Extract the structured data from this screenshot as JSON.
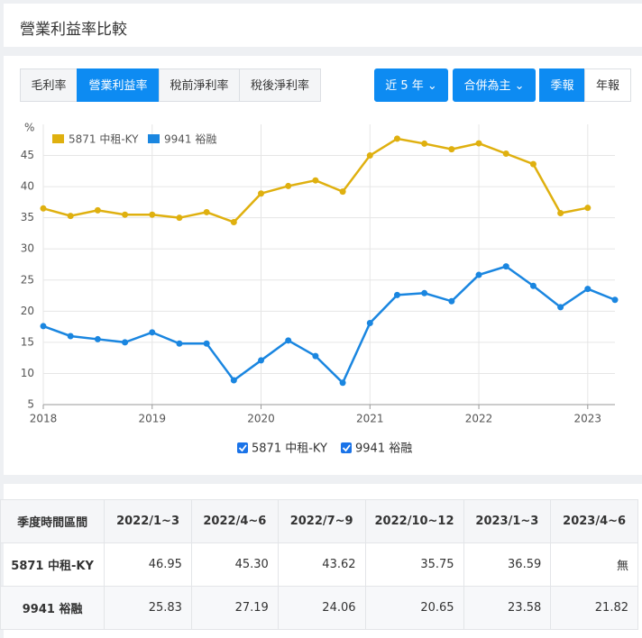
{
  "header": {
    "title": "營業利益率比較"
  },
  "tabs": [
    "毛利率",
    "營業利益率",
    "稅前淨利率",
    "稅後淨利率"
  ],
  "filters": [
    "近 5 年",
    "合併為主",
    "季報",
    "年報"
  ],
  "chart_data": {
    "type": "line",
    "ylabel": "%",
    "categories": [
      "2018",
      null,
      null,
      null,
      "2019",
      null,
      null,
      null,
      "2020",
      null,
      null,
      null,
      "2021",
      null,
      null,
      null,
      "2022",
      null,
      null,
      null,
      "2023",
      null
    ],
    "series": [
      {
        "name": "5871 中租-KY",
        "color": "#dfb00f",
        "values": [
          36.5,
          35.3,
          36.2,
          35.5,
          35.5,
          35.0,
          35.9,
          34.3,
          38.9,
          40.1,
          41.0,
          39.2,
          45.0,
          47.7,
          46.9,
          46.0,
          46.95,
          45.3,
          43.62,
          35.75,
          36.59,
          null
        ]
      },
      {
        "name": "9941 裕融",
        "color": "#1a86e0",
        "values": [
          17.6,
          16.0,
          15.5,
          15.0,
          16.6,
          14.8,
          14.8,
          8.9,
          12.1,
          15.3,
          12.8,
          8.5,
          18.1,
          22.6,
          22.9,
          21.6,
          25.83,
          27.19,
          24.06,
          20.65,
          23.58,
          21.82
        ]
      }
    ],
    "ylim": [
      5,
      50
    ],
    "yticks": [
      5,
      10,
      15,
      20,
      25,
      30,
      35,
      40,
      45
    ],
    "grid": true
  },
  "table": {
    "header": [
      "季度時間區間",
      "2022/1~3",
      "2022/4~6",
      "2022/7~9",
      "2022/10~12",
      "2023/1~3",
      "2023/4~6"
    ],
    "rows": [
      [
        "5871 中租-KY",
        "46.95",
        "45.30",
        "43.62",
        "35.75",
        "36.59",
        "無"
      ],
      [
        "9941 裕融",
        "25.83",
        "27.19",
        "24.06",
        "20.65",
        "23.58",
        "21.82"
      ]
    ]
  }
}
